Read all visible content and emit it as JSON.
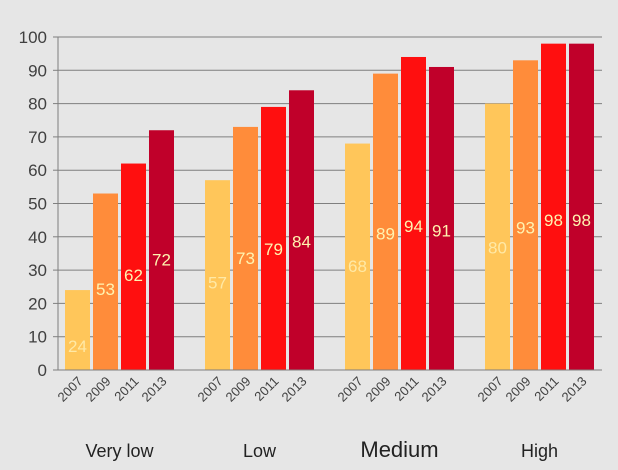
{
  "chart_data": {
    "type": "bar",
    "title": "",
    "xlabel": "",
    "ylabel": "",
    "ylim": [
      0,
      100
    ],
    "yticks": [
      0,
      10,
      20,
      30,
      40,
      50,
      60,
      70,
      80,
      90,
      100
    ],
    "grid": true,
    "legend": "none",
    "groups": [
      "Very low",
      "Low",
      "Medium",
      "High"
    ],
    "series": [
      {
        "name": "2007",
        "color": "#ffc65a",
        "label_color": "#ffe9a6",
        "values": [
          24,
          57,
          68,
          80
        ]
      },
      {
        "name": "2009",
        "color": "#ff8c3a",
        "label_color": "#fff3b0",
        "values": [
          53,
          73,
          89,
          93
        ]
      },
      {
        "name": "2011",
        "color": "#ff0f0f",
        "label_color": "#fff3b0",
        "values": [
          62,
          79,
          94,
          98
        ]
      },
      {
        "name": "2013",
        "color": "#c0002a",
        "label_color": "#fff3b0",
        "values": [
          72,
          84,
          91,
          98
        ]
      }
    ]
  },
  "colors": {
    "background": "#e6e6e6",
    "axis": "#7f7f7f",
    "gridline": "#7f7f7f",
    "tick_text": "#404040"
  }
}
